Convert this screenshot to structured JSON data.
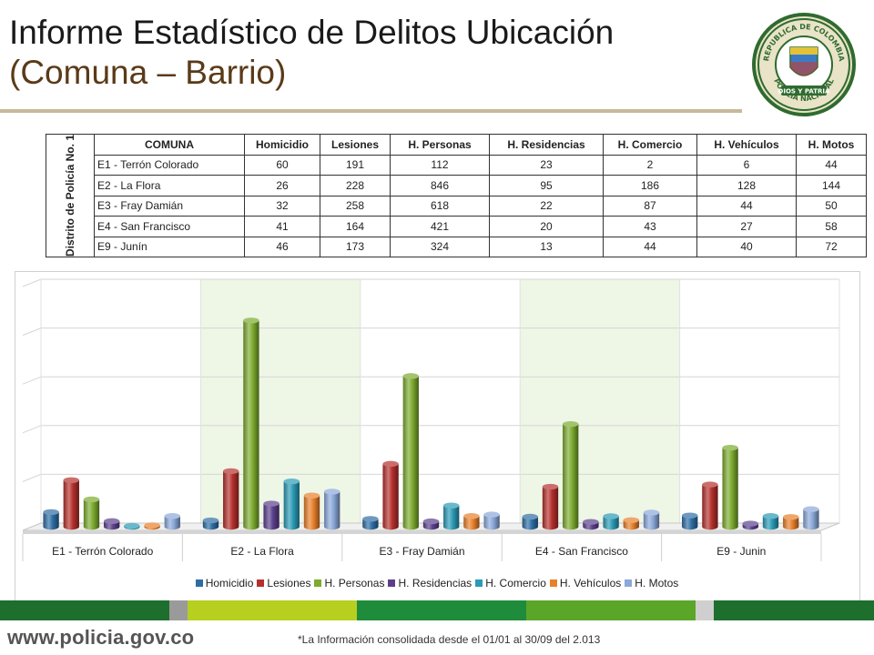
{
  "header": {
    "title_line1": "Informe Estadístico de Delitos Ubicación",
    "title_line2": "(Comuna – Barrio)"
  },
  "table": {
    "side_label": "Distrito de Policía No. 1",
    "headers": [
      "COMUNA",
      "Homicidio",
      "Lesiones",
      "H. Personas",
      "H. Residencias",
      "H. Comercio",
      "H. Vehículos",
      "H. Motos"
    ],
    "rows": [
      [
        "E1 - Terrón Colorado",
        "60",
        "191",
        "112",
        "23",
        "2",
        "6",
        "44"
      ],
      [
        "E2 - La Flora",
        "26",
        "228",
        "846",
        "95",
        "186",
        "128",
        "144"
      ],
      [
        "E3 - Fray Damián",
        "32",
        "258",
        "618",
        "22",
        "87",
        "44",
        "50"
      ],
      [
        "E4 - San Francisco",
        "41",
        "164",
        "421",
        "20",
        "43",
        "27",
        "58"
      ],
      [
        "E9 - Junín",
        "46",
        "173",
        "324",
        "13",
        "44",
        "40",
        "72"
      ]
    ]
  },
  "chart_data": {
    "type": "bar",
    "categories": [
      "E1 - Terrón Colorado",
      "E2 - La Flora",
      "E3 - Fray Damián",
      "E4 - San Francisco",
      "E9 - Junin"
    ],
    "series": [
      {
        "name": "Homicidio",
        "color": "#2e6da4",
        "values": [
          60,
          26,
          32,
          41,
          46
        ]
      },
      {
        "name": "Lesiones",
        "color": "#b5302c",
        "values": [
          191,
          228,
          258,
          164,
          173
        ]
      },
      {
        "name": "H. Personas",
        "color": "#7cab2f",
        "values": [
          112,
          846,
          618,
          421,
          324
        ]
      },
      {
        "name": "H. Residencias",
        "color": "#5b3f8c",
        "values": [
          23,
          95,
          22,
          20,
          13
        ]
      },
      {
        "name": "H. Comercio",
        "color": "#2a9ab5",
        "values": [
          2,
          186,
          87,
          43,
          44
        ]
      },
      {
        "name": "H. Vehículos",
        "color": "#e8802a",
        "values": [
          6,
          128,
          44,
          27,
          40
        ]
      },
      {
        "name": "H. Motos",
        "color": "#8aa8d8",
        "values": [
          44,
          144,
          50,
          58,
          72
        ]
      }
    ],
    "ylim": [
      0,
      1000
    ],
    "grid": true,
    "legend_position": "bottom",
    "style": "3d-cylinder"
  },
  "footer": {
    "url": "www.policia.gov.co",
    "note": "*La Información consolidada desde el 01/01 al 30/09 del 2.013",
    "band_colors": [
      "#1e6e2e",
      "#9a9a9a",
      "#b7cf1f",
      "#1e8c3a",
      "#5aa629",
      "#cfcfcf",
      "#1e6e2e"
    ]
  },
  "seal": {
    "text_top": "REPUBLICA DE COLOMBIA",
    "text_bottom": "POLICIA NACIONAL",
    "motto": "DIOS Y PATRIA"
  }
}
